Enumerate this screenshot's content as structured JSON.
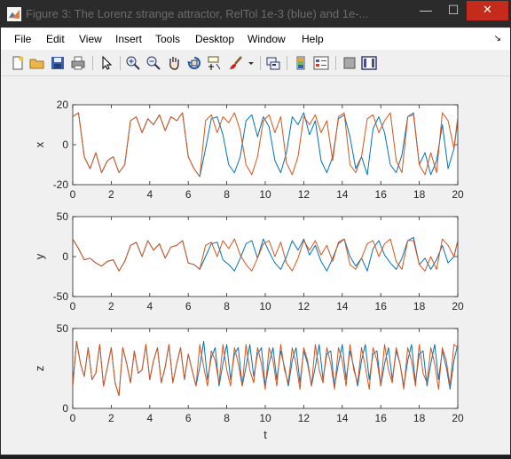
{
  "window": {
    "title": "Figure 3: The Lorenz strange attractor, RelTol 1e-3 (blue) and 1e-...",
    "minimize_glyph": "—",
    "maximize_glyph": "☐",
    "close_glyph": "✕"
  },
  "menu": {
    "items": [
      "File",
      "Edit",
      "View",
      "Insert",
      "Tools",
      "Desktop",
      "Window",
      "Help"
    ],
    "dock_glyph": "↘"
  },
  "toolbar": {
    "icons": [
      "new-figure-icon",
      "open-file-icon",
      "save-icon",
      "print-icon",
      "select-arrow-icon",
      "zoom-in-icon",
      "zoom-out-icon",
      "pan-hand-icon",
      "rotate-3d-icon",
      "data-cursor-icon",
      "brush-icon",
      "brush-dropdown-icon",
      "link-plot-icon",
      "colorbar-icon",
      "legend-icon",
      "hide-plot-tools-icon",
      "show-plot-tools-icon"
    ]
  },
  "colors": {
    "blue": "#0072bd",
    "orange": "#d95319"
  },
  "chart_data": [
    {
      "type": "line",
      "ylabel": "x",
      "xlabel": "",
      "xlim": [
        0,
        20
      ],
      "ylim": [
        -20,
        20
      ],
      "xticks": [
        "0",
        "2",
        "4",
        "6",
        "8",
        "10",
        "12",
        "14",
        "16",
        "18",
        "20"
      ],
      "yticks": [
        "-20",
        "0",
        "20"
      ],
      "series": [
        {
          "color": "#0072bd",
          "x": [
            0,
            0.3,
            0.6,
            0.9,
            1.2,
            1.5,
            1.8,
            2.1,
            2.4,
            2.7,
            3.0,
            3.3,
            3.6,
            3.9,
            4.2,
            4.5,
            4.8,
            5.1,
            5.4,
            5.7,
            6.0,
            6.3,
            6.6,
            6.9,
            7.2,
            7.5,
            7.8,
            8.1,
            8.4,
            8.7,
            9.0,
            9.3,
            9.6,
            9.9,
            10.2,
            10.5,
            10.8,
            11.1,
            11.4,
            11.7,
            12.0,
            12.3,
            12.6,
            12.9,
            13.2,
            13.5,
            13.8,
            14.1,
            14.4,
            14.7,
            15.0,
            15.3,
            15.6,
            15.9,
            16.2,
            16.5,
            16.8,
            17.1,
            17.4,
            17.7,
            18.0,
            18.3,
            18.6,
            18.9,
            19.2,
            19.5,
            19.8,
            20.0
          ],
          "y": [
            14,
            16,
            -6,
            -12,
            -4,
            -14,
            -8,
            -6,
            -14,
            -10,
            12,
            14,
            6,
            13,
            10,
            15,
            7,
            14,
            12,
            16,
            -6,
            -12,
            -16,
            -2,
            13,
            14,
            5,
            -10,
            -14,
            -6,
            12,
            15,
            4,
            14,
            9,
            -8,
            -14,
            -4,
            14,
            10,
            16,
            5,
            12,
            -8,
            -14,
            -6,
            13,
            15,
            4,
            -12,
            -6,
            -15,
            8,
            14,
            6,
            -10,
            -14,
            -5,
            14,
            16,
            -10,
            -4,
            -15,
            -8,
            10,
            -12,
            -2,
            12
          ]
        },
        {
          "color": "#d95319",
          "x": [
            0,
            0.3,
            0.6,
            0.9,
            1.2,
            1.5,
            1.8,
            2.1,
            2.4,
            2.7,
            3.0,
            3.3,
            3.6,
            3.9,
            4.2,
            4.5,
            4.8,
            5.1,
            5.4,
            5.7,
            6.0,
            6.3,
            6.6,
            6.9,
            7.2,
            7.5,
            7.8,
            8.1,
            8.4,
            8.7,
            9.0,
            9.3,
            9.6,
            9.9,
            10.2,
            10.5,
            10.8,
            11.1,
            11.4,
            11.7,
            12.0,
            12.3,
            12.6,
            12.9,
            13.2,
            13.5,
            13.8,
            14.1,
            14.4,
            14.7,
            15.0,
            15.3,
            15.6,
            15.9,
            16.2,
            16.5,
            16.8,
            17.1,
            17.4,
            17.7,
            18.0,
            18.3,
            18.6,
            18.9,
            19.2,
            19.5,
            19.8,
            20.0
          ],
          "y": [
            14,
            16,
            -6,
            -12,
            -4,
            -14,
            -8,
            -6,
            -14,
            -10,
            12,
            14,
            6,
            13,
            10,
            15,
            7,
            14,
            12,
            16,
            -6,
            -12,
            -16,
            12,
            15,
            6,
            14,
            11,
            16,
            7,
            -10,
            -15,
            -6,
            12,
            15,
            6,
            14,
            -9,
            -15,
            -6,
            14,
            10,
            15,
            6,
            12,
            -8,
            14,
            16,
            -10,
            -14,
            -6,
            13,
            15,
            6,
            12,
            16,
            -8,
            -14,
            14,
            15,
            -10,
            -15,
            -4,
            -14,
            16,
            12,
            -2,
            14
          ]
        }
      ]
    },
    {
      "type": "line",
      "ylabel": "y",
      "xlabel": "",
      "xlim": [
        0,
        20
      ],
      "ylim": [
        -50,
        50
      ],
      "xticks": [
        "0",
        "2",
        "4",
        "6",
        "8",
        "10",
        "12",
        "14",
        "16",
        "18",
        "20"
      ],
      "yticks": [
        "-50",
        "0",
        "50"
      ],
      "series": [
        {
          "color": "#0072bd",
          "x": [
            0,
            0.3,
            0.6,
            0.9,
            1.2,
            1.5,
            1.8,
            2.1,
            2.4,
            2.7,
            3.0,
            3.3,
            3.6,
            3.9,
            4.2,
            4.5,
            4.8,
            5.1,
            5.4,
            5.7,
            6.0,
            6.3,
            6.6,
            6.9,
            7.2,
            7.5,
            7.8,
            8.1,
            8.4,
            8.7,
            9.0,
            9.3,
            9.6,
            9.9,
            10.2,
            10.5,
            10.8,
            11.1,
            11.4,
            11.7,
            12.0,
            12.3,
            12.6,
            12.9,
            13.2,
            13.5,
            13.8,
            14.1,
            14.4,
            14.7,
            15.0,
            15.3,
            15.6,
            15.9,
            16.2,
            16.5,
            16.8,
            17.1,
            17.4,
            17.7,
            18.0,
            18.3,
            18.6,
            18.9,
            19.2,
            19.5,
            19.8,
            20.0
          ],
          "y": [
            22,
            10,
            -4,
            -2,
            -8,
            -12,
            -6,
            -4,
            -18,
            -6,
            14,
            18,
            0,
            20,
            8,
            16,
            -2,
            12,
            14,
            20,
            -8,
            -10,
            -16,
            0,
            16,
            18,
            -4,
            -10,
            -18,
            -2,
            16,
            20,
            -2,
            22,
            6,
            -8,
            -16,
            0,
            20,
            8,
            22,
            2,
            14,
            -6,
            -18,
            -2,
            16,
            22,
            0,
            -12,
            -2,
            -18,
            10,
            20,
            2,
            -8,
            -16,
            -2,
            20,
            24,
            -10,
            -2,
            -16,
            -4,
            14,
            -8,
            0,
            20
          ]
        },
        {
          "color": "#d95319",
          "x": [
            0,
            0.3,
            0.6,
            0.9,
            1.2,
            1.5,
            1.8,
            2.1,
            2.4,
            2.7,
            3.0,
            3.3,
            3.6,
            3.9,
            4.2,
            4.5,
            4.8,
            5.1,
            5.4,
            5.7,
            6.0,
            6.3,
            6.6,
            6.9,
            7.2,
            7.5,
            7.8,
            8.1,
            8.4,
            8.7,
            9.0,
            9.3,
            9.6,
            9.9,
            10.2,
            10.5,
            10.8,
            11.1,
            11.4,
            11.7,
            12.0,
            12.3,
            12.6,
            12.9,
            13.2,
            13.5,
            13.8,
            14.1,
            14.4,
            14.7,
            15.0,
            15.3,
            15.6,
            15.9,
            16.2,
            16.5,
            16.8,
            17.1,
            17.4,
            17.7,
            18.0,
            18.3,
            18.6,
            18.9,
            19.2,
            19.5,
            19.8,
            20.0
          ],
          "y": [
            22,
            10,
            -4,
            -2,
            -8,
            -12,
            -6,
            -4,
            -18,
            -6,
            14,
            18,
            0,
            20,
            8,
            16,
            -2,
            12,
            14,
            20,
            -8,
            -10,
            -16,
            14,
            18,
            0,
            20,
            10,
            22,
            2,
            -10,
            -18,
            -2,
            16,
            20,
            0,
            18,
            -8,
            -18,
            -2,
            20,
            8,
            20,
            2,
            14,
            -6,
            18,
            22,
            -10,
            -16,
            -2,
            16,
            20,
            0,
            16,
            22,
            -6,
            -16,
            20,
            20,
            -10,
            -18,
            0,
            -16,
            22,
            14,
            0,
            20
          ]
        }
      ]
    },
    {
      "type": "line",
      "ylabel": "z",
      "xlabel": "t",
      "xlim": [
        0,
        20
      ],
      "ylim": [
        0,
        50
      ],
      "xticks": [
        "0",
        "2",
        "4",
        "6",
        "8",
        "10",
        "12",
        "14",
        "16",
        "18",
        "20"
      ],
      "yticks": [
        "0",
        "50"
      ],
      "series": [
        {
          "color": "#0072bd",
          "x": [
            0,
            0.2,
            0.4,
            0.6,
            0.8,
            1.0,
            1.2,
            1.4,
            1.6,
            1.8,
            2.0,
            2.2,
            2.4,
            2.6,
            2.8,
            3.0,
            3.2,
            3.4,
            3.6,
            3.8,
            4.0,
            4.2,
            4.4,
            4.6,
            4.8,
            5.0,
            5.2,
            5.4,
            5.6,
            5.8,
            6.0,
            6.2,
            6.4,
            6.6,
            6.8,
            7.0,
            7.2,
            7.4,
            7.6,
            7.8,
            8.0,
            8.2,
            8.4,
            8.6,
            8.8,
            9.0,
            9.2,
            9.4,
            9.6,
            9.8,
            10.0,
            10.2,
            10.4,
            10.6,
            10.8,
            11.0,
            11.2,
            11.4,
            11.6,
            11.8,
            12.0,
            12.2,
            12.4,
            12.6,
            12.8,
            13.0,
            13.2,
            13.4,
            13.6,
            13.8,
            14.0,
            14.2,
            14.4,
            14.6,
            14.8,
            15.0,
            15.2,
            15.4,
            15.6,
            15.8,
            16.0,
            16.2,
            16.4,
            16.6,
            16.8,
            17.0,
            17.2,
            17.4,
            17.6,
            17.8,
            18.0,
            18.2,
            18.4,
            18.6,
            18.8,
            19.0,
            19.2,
            19.4,
            19.6,
            19.8,
            20.0
          ],
          "y": [
            14,
            42,
            28,
            20,
            38,
            18,
            22,
            40,
            14,
            26,
            38,
            16,
            8,
            38,
            28,
            16,
            36,
            22,
            24,
            40,
            18,
            30,
            38,
            16,
            26,
            40,
            16,
            28,
            38,
            18,
            34,
            24,
            14,
            26,
            42,
            18,
            32,
            38,
            14,
            28,
            40,
            18,
            34,
            38,
            14,
            26,
            40,
            20,
            34,
            38,
            14,
            28,
            38,
            18,
            36,
            26,
            14,
            30,
            38,
            16,
            36,
            28,
            14,
            26,
            40,
            18,
            34,
            36,
            14,
            28,
            40,
            18,
            36,
            26,
            14,
            30,
            40,
            18,
            34,
            36,
            14,
            28,
            38,
            18,
            36,
            28,
            14,
            30,
            40,
            16,
            34,
            36,
            14,
            28,
            40,
            18,
            36,
            26,
            12,
            30,
            40
          ]
        },
        {
          "color": "#d95319",
          "x": [
            0,
            0.2,
            0.4,
            0.6,
            0.8,
            1.0,
            1.2,
            1.4,
            1.6,
            1.8,
            2.0,
            2.2,
            2.4,
            2.6,
            2.8,
            3.0,
            3.2,
            3.4,
            3.6,
            3.8,
            4.0,
            4.2,
            4.4,
            4.6,
            4.8,
            5.0,
            5.2,
            5.4,
            5.6,
            5.8,
            6.0,
            6.2,
            6.4,
            6.6,
            6.8,
            7.0,
            7.2,
            7.4,
            7.6,
            7.8,
            8.0,
            8.2,
            8.4,
            8.6,
            8.8,
            9.0,
            9.2,
            9.4,
            9.6,
            9.8,
            10.0,
            10.2,
            10.4,
            10.6,
            10.8,
            11.0,
            11.2,
            11.4,
            11.6,
            11.8,
            12.0,
            12.2,
            12.4,
            12.6,
            12.8,
            13.0,
            13.2,
            13.4,
            13.6,
            13.8,
            14.0,
            14.2,
            14.4,
            14.6,
            14.8,
            15.0,
            15.2,
            15.4,
            15.6,
            15.8,
            16.0,
            16.2,
            16.4,
            16.6,
            16.8,
            17.0,
            17.2,
            17.4,
            17.6,
            17.8,
            18.0,
            18.2,
            18.4,
            18.6,
            18.8,
            19.0,
            19.2,
            19.4,
            19.6,
            19.8,
            20.0
          ],
          "y": [
            14,
            42,
            28,
            20,
            38,
            18,
            22,
            40,
            14,
            26,
            38,
            16,
            8,
            38,
            28,
            16,
            36,
            22,
            24,
            40,
            18,
            30,
            38,
            16,
            26,
            40,
            16,
            28,
            38,
            18,
            34,
            24,
            14,
            40,
            26,
            14,
            36,
            30,
            16,
            40,
            24,
            14,
            38,
            28,
            14,
            40,
            24,
            16,
            38,
            28,
            12,
            38,
            30,
            14,
            40,
            24,
            16,
            38,
            28,
            12,
            38,
            30,
            14,
            40,
            24,
            16,
            38,
            28,
            12,
            38,
            30,
            14,
            40,
            24,
            16,
            38,
            26,
            12,
            38,
            30,
            14,
            40,
            24,
            16,
            38,
            28,
            12,
            38,
            30,
            14,
            40,
            22,
            16,
            38,
            28,
            12,
            38,
            30,
            14,
            40,
            38
          ]
        }
      ]
    }
  ]
}
